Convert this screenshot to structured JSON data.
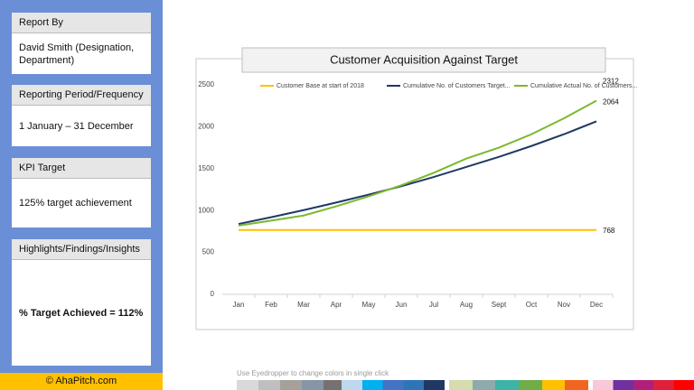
{
  "sidebar": {
    "panels": [
      {
        "header": "Report By",
        "body": "David Smith (Designation, Department)"
      },
      {
        "header": "Reporting Period/Frequency",
        "body": "1 January – 31 December"
      },
      {
        "header": "KPI Target",
        "body": "125% target achievement"
      },
      {
        "header": "Highlights/Findings/Insights",
        "body": "% Target Achieved = 112%"
      }
    ],
    "footer": "© AhaPitch.com"
  },
  "palette_note": "Use Eyedropper to change colors in single click",
  "chart_data": {
    "type": "line",
    "title": "Customer Acquisition Against Target",
    "categories": [
      "Jan",
      "Feb",
      "Mar",
      "Apr",
      "May",
      "Jun",
      "Jul",
      "Aug",
      "Sept",
      "Oct",
      "Nov",
      "Dec"
    ],
    "series": [
      {
        "name": "Customer Base at start of 2018",
        "color": "#ffc000",
        "values": [
          768,
          768,
          768,
          768,
          768,
          768,
          768,
          768,
          768,
          768,
          768,
          768
        ]
      },
      {
        "name": "Cumulative No. of Customers Target...",
        "color": "#1f3864",
        "values": [
          840,
          920,
          1005,
          1095,
          1190,
          1290,
          1400,
          1520,
          1640,
          1770,
          1910,
          2064
        ]
      },
      {
        "name": "Cumulative Actual No. of Customers...",
        "color": "#7cb82f",
        "values": [
          820,
          880,
          940,
          1050,
          1170,
          1300,
          1450,
          1620,
          1750,
          1910,
          2100,
          2312
        ]
      }
    ],
    "ylim": [
      0,
      2500
    ],
    "yticks": [
      0,
      500,
      1000,
      1500,
      2000,
      2500
    ],
    "grid": false,
    "legend": "top"
  }
}
